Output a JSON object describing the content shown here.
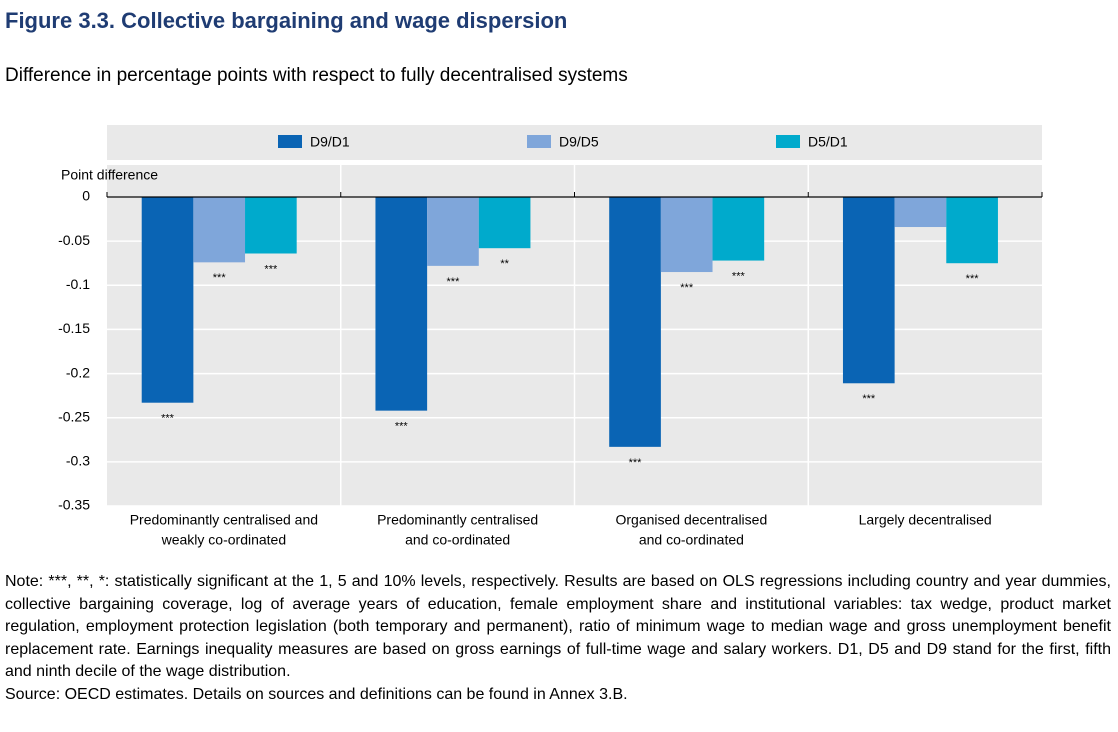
{
  "chart_data": {
    "type": "bar",
    "title": "Figure 3.3. Collective bargaining and wage dispersion",
    "subtitle": "Difference in percentage points with respect to fully decentralised systems",
    "y_label": "Point difference",
    "categories": [
      [
        "Predominantly centralised and",
        "weakly co-ordinated"
      ],
      [
        "Predominantly centralised",
        "and co-ordinated"
      ],
      [
        "Organised decentralised",
        "and co-ordinated"
      ],
      [
        "Largely decentralised"
      ]
    ],
    "series": [
      {
        "name": "D9/D1",
        "color": "#0a64b4",
        "values": [
          -0.233,
          -0.242,
          -0.283,
          -0.211
        ],
        "significance": [
          "***",
          "***",
          "***",
          "***"
        ]
      },
      {
        "name": "D9/D5",
        "color": "#7fa6da",
        "values": [
          -0.074,
          -0.078,
          -0.085,
          -0.034
        ],
        "significance": [
          "***",
          "***",
          "***",
          null
        ]
      },
      {
        "name": "D5/D1",
        "color": "#00aacc",
        "values": [
          -0.064,
          -0.058,
          -0.072,
          -0.075
        ],
        "significance": [
          "***",
          "**",
          "***",
          "***"
        ]
      }
    ],
    "ylim": [
      -0.35,
      0
    ],
    "yticks": [
      0,
      -0.05,
      -0.1,
      -0.15,
      -0.2,
      -0.25,
      -0.3,
      -0.35
    ],
    "grid": true,
    "legend": "top",
    "note": "Note: ***, **, *: statistically significant at the 1, 5 and 10% levels, respectively. Results are based on OLS regressions including country and year dummies, collective bargaining coverage, log of average years of education, female employment share and institutional variables: tax wedge, product market regulation, employment protection legislation (both temporary and permanent), ratio of minimum wage to median wage and gross unemployment benefit replacement rate. Earnings inequality measures are based on gross earnings of full-time wage and salary workers. D1, D5 and D9 stand for the first, fifth and ninth decile of the wage distribution.",
    "source": "Source: OECD estimates. Details on sources and definitions can be found in Annex 3.B."
  }
}
